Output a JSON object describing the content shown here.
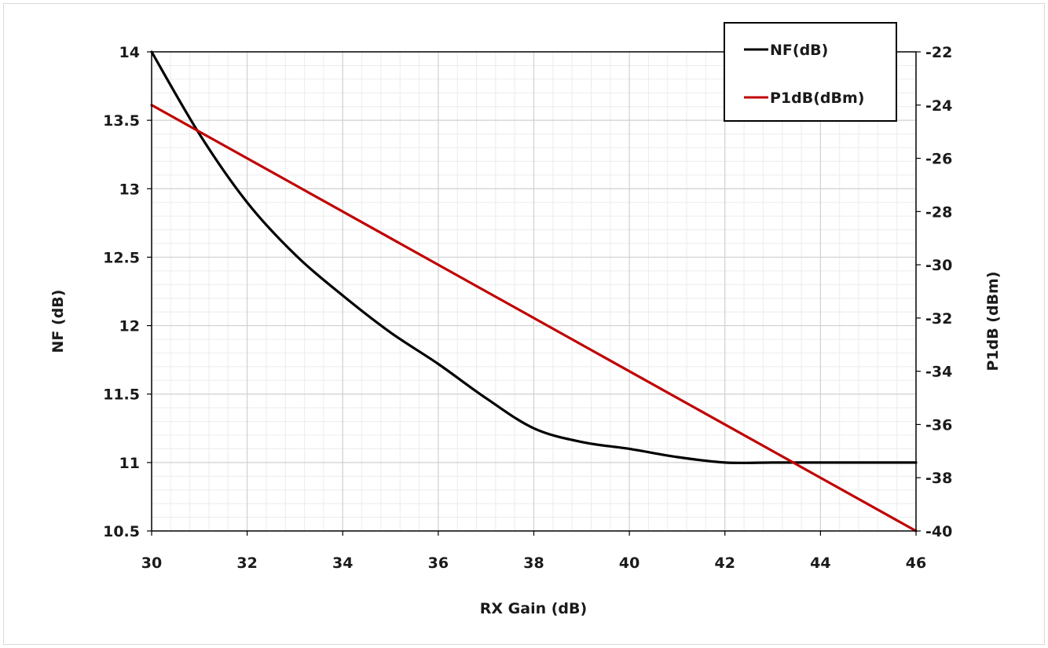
{
  "chart_data": {
    "type": "line",
    "title": "",
    "xlabel": "RX Gain (dB)",
    "ylabel": "NF (dB)",
    "y2label": "P1dB (dBm)",
    "xlim": [
      30,
      46
    ],
    "ylim": [
      10.5,
      14
    ],
    "y2lim": [
      -40,
      -22
    ],
    "x_ticks": [
      "30",
      "32",
      "34",
      "36",
      "38",
      "40",
      "42",
      "44",
      "46"
    ],
    "y_ticks": [
      "14",
      "13.5",
      "13",
      "12.5",
      "12",
      "11.5",
      "11",
      "10.5"
    ],
    "y2_ticks": [
      "-22",
      "-24",
      "-26",
      "-28",
      "-30",
      "-32",
      "-34",
      "-36",
      "-38",
      "-40"
    ],
    "grid": true,
    "legend_position": "top-right",
    "series": [
      {
        "name": "NF(dB)",
        "axis": "left",
        "color": "#000000",
        "x": [
          30,
          31,
          32,
          33,
          34,
          35,
          36,
          37,
          38,
          39,
          40,
          41,
          42,
          43,
          44,
          45,
          46
        ],
        "values": [
          14.0,
          13.4,
          12.9,
          12.52,
          12.22,
          11.95,
          11.72,
          11.47,
          11.25,
          11.15,
          11.1,
          11.04,
          11.0,
          11.0,
          11.0,
          11.0,
          11.0
        ]
      },
      {
        "name": "P1dB(dBm)",
        "axis": "right",
        "color": "#c00000",
        "x": [
          30,
          46
        ],
        "values": [
          -24,
          -40
        ]
      }
    ]
  }
}
